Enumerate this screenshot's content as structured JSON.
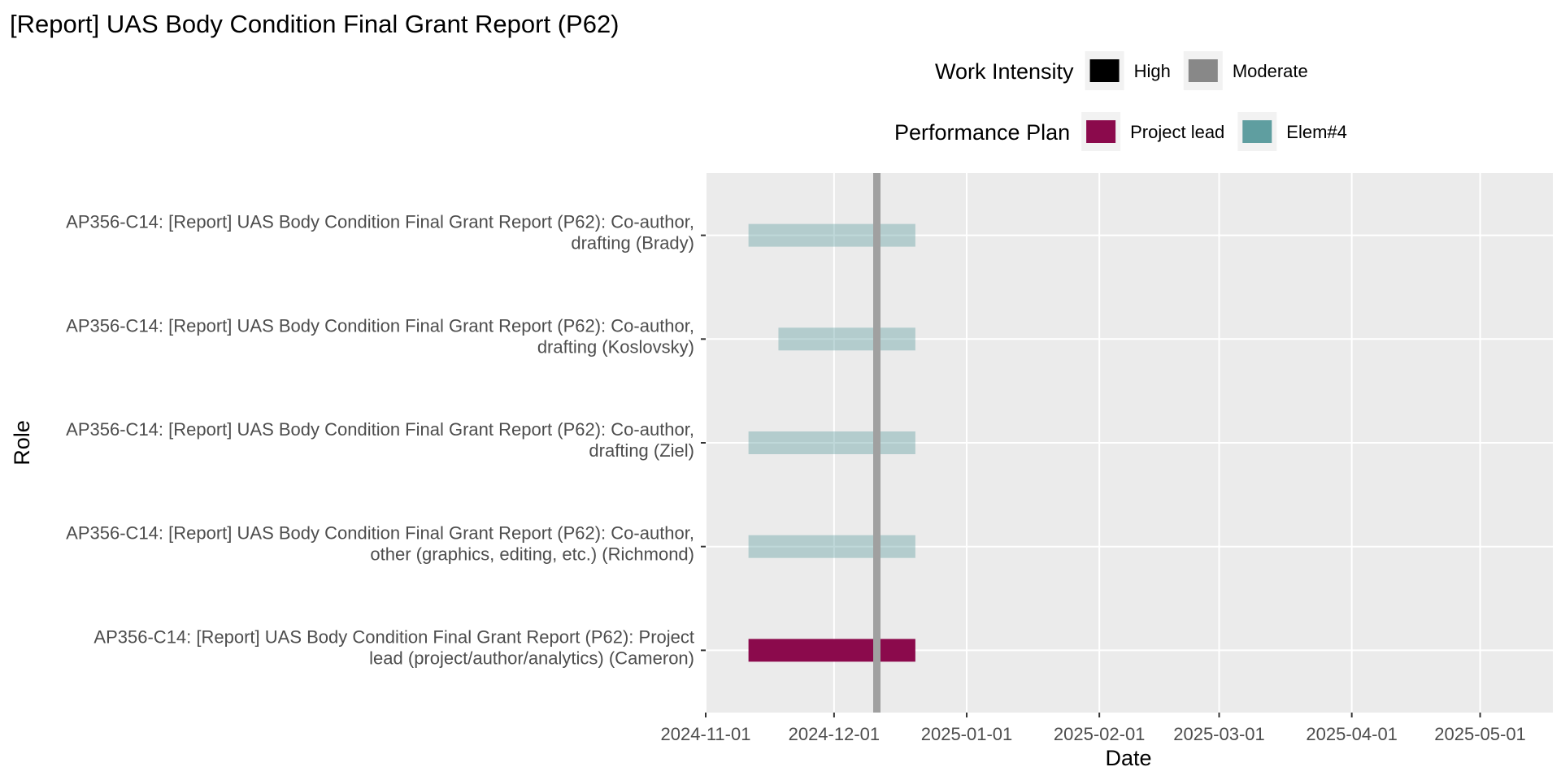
{
  "chart_data": {
    "type": "bar",
    "orientation": "horizontal",
    "title": "[Report] UAS Body Condition Final Grant Report (P62)",
    "xlabel": "Date",
    "ylabel": "Role",
    "x_ticks": [
      "2024-11-01",
      "2024-12-01",
      "2025-01-01",
      "2025-02-01",
      "2025-03-01",
      "2025-04-01",
      "2025-05-01"
    ],
    "xlim": [
      "2024-11-01",
      "2025-05-18"
    ],
    "today_marker": "2024-12-11",
    "grid": true,
    "legend_position": "top",
    "legends": [
      {
        "title": "Work Intensity",
        "entries": [
          {
            "label": "High",
            "color": "#000000"
          },
          {
            "label": "Moderate",
            "color": "#888888"
          }
        ]
      },
      {
        "title": "Performance Plan",
        "entries": [
          {
            "label": "Project lead",
            "color": "#8b0a4c"
          },
          {
            "label": "Elem#4",
            "color": "#5f9ea0"
          }
        ]
      }
    ],
    "tasks": [
      {
        "label_lines": [
          "AP356-C14: [Report] UAS Body Condition Final Grant Report (P62): Co-author,",
          "drafting (Brady)"
        ],
        "start": "2024-11-11",
        "end": "2024-12-20",
        "plan": "Elem#4",
        "intensity": "Moderate"
      },
      {
        "label_lines": [
          "AP356-C14: [Report] UAS Body Condition Final Grant Report (P62): Co-author,",
          "drafting (Koslovsky)"
        ],
        "start": "2024-11-18",
        "end": "2024-12-20",
        "plan": "Elem#4",
        "intensity": "Moderate"
      },
      {
        "label_lines": [
          "AP356-C14: [Report] UAS Body Condition Final Grant Report (P62): Co-author,",
          "drafting (Ziel)"
        ],
        "start": "2024-11-11",
        "end": "2024-12-20",
        "plan": "Elem#4",
        "intensity": "Moderate"
      },
      {
        "label_lines": [
          "AP356-C14: [Report] UAS Body Condition Final Grant Report (P62): Co-author,",
          "other (graphics, editing, etc.) (Richmond)"
        ],
        "start": "2024-11-11",
        "end": "2024-12-20",
        "plan": "Elem#4",
        "intensity": "Moderate"
      },
      {
        "label_lines": [
          "AP356-C14: [Report] UAS Body Condition Final Grant Report (P62): Project",
          "lead (project/author/analytics) (Cameron)"
        ],
        "start": "2024-11-11",
        "end": "2024-12-20",
        "plan": "Project lead",
        "intensity": "High"
      }
    ]
  }
}
